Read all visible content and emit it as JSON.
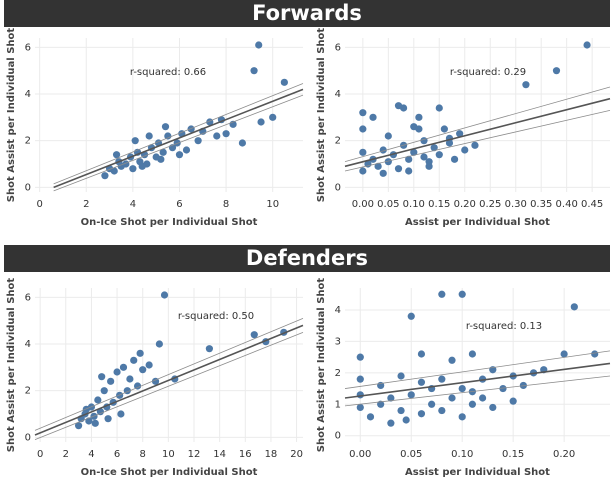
{
  "sections": [
    {
      "title": "Forwards"
    },
    {
      "title": "Defenders"
    }
  ],
  "chart_data": [
    {
      "type": "scatter",
      "x_label": "On-Ice Shot per Individual Shot",
      "y_label": "Shot Assist per Individual Shot",
      "annotation": "r-squared: 0.66",
      "color": "#4e79a7",
      "grid": true,
      "xlim": [
        -0.2,
        11.3
      ],
      "ylim": [
        -0.2,
        6.4
      ],
      "xticks": [
        0,
        2,
        4,
        6,
        8,
        10
      ],
      "yticks": [
        0,
        2,
        4,
        6
      ],
      "x": [
        2.8,
        3.0,
        3.2,
        3.4,
        3.5,
        3.7,
        3.9,
        4.0,
        4.2,
        4.3,
        4.5,
        4.6,
        4.8,
        5.0,
        5.1,
        5.3,
        5.5,
        5.7,
        5.9,
        6.1,
        6.3,
        6.5,
        6.8,
        7.0,
        7.3,
        7.6,
        8.0,
        8.3,
        4.1,
        4.7,
        5.4,
        6.0,
        3.3,
        4.4,
        5.2,
        9.2,
        9.4,
        10.0,
        10.5,
        9.5,
        8.7,
        7.8
      ],
      "values": [
        0.5,
        0.8,
        0.7,
        1.1,
        0.9,
        1.0,
        1.3,
        0.8,
        1.5,
        1.1,
        1.4,
        1.0,
        1.7,
        1.3,
        1.9,
        1.5,
        2.2,
        1.7,
        1.9,
        2.3,
        1.6,
        2.5,
        2.0,
        2.4,
        2.8,
        2.2,
        2.3,
        2.7,
        2.0,
        2.2,
        2.6,
        1.4,
        1.4,
        0.9,
        1.2,
        5.0,
        6.1,
        3.0,
        4.5,
        2.8,
        1.9,
        2.9
      ],
      "trend_x": [
        0.6,
        11.3
      ],
      "trend_y": [
        0.0,
        4.2
      ],
      "band_upper": [
        0.15,
        4.45
      ],
      "band_lower": [
        -0.15,
        3.95
      ]
    },
    {
      "type": "scatter",
      "x_label": "Assist per Individual Shot",
      "y_label": "Shot Assist per Individual Shot",
      "annotation": "r-squared: 0.29",
      "color": "#4e79a7",
      "grid": true,
      "xlim": [
        -0.035,
        0.485
      ],
      "ylim": [
        -0.2,
        6.4
      ],
      "xticks": [
        {
          "value": 0,
          "label": "0.00"
        },
        {
          "value": 0.05,
          "label": "0.05"
        },
        {
          "value": 0.1,
          "label": "0.10"
        },
        {
          "value": 0.15,
          "label": "0.15"
        },
        {
          "value": 0.2,
          "label": "0.20"
        },
        {
          "value": 0.25,
          "label": "0.25"
        },
        {
          "value": 0.3,
          "label": "0.30"
        },
        {
          "value": 0.35,
          "label": "0.35"
        },
        {
          "value": 0.4,
          "label": "0.40"
        },
        {
          "value": 0.45,
          "label": "0.45"
        }
      ],
      "yticks": [
        0,
        2,
        4,
        6
      ],
      "x": [
        0.0,
        0.0,
        0.0,
        0.01,
        0.02,
        0.02,
        0.03,
        0.04,
        0.05,
        0.05,
        0.06,
        0.07,
        0.08,
        0.08,
        0.09,
        0.1,
        0.1,
        0.11,
        0.12,
        0.12,
        0.13,
        0.14,
        0.15,
        0.16,
        0.17,
        0.18,
        0.19,
        0.2,
        0.07,
        0.11,
        0.15,
        0.0,
        0.13,
        0.22,
        0.32,
        0.38,
        0.44,
        0.04,
        0.09,
        0.17
      ],
      "values": [
        0.7,
        1.5,
        2.5,
        1.0,
        3.0,
        1.2,
        0.9,
        1.6,
        1.1,
        2.2,
        1.4,
        0.8,
        1.8,
        3.4,
        1.2,
        1.5,
        2.6,
        3.0,
        1.3,
        2.0,
        1.1,
        1.7,
        1.4,
        2.5,
        1.9,
        1.2,
        2.3,
        1.6,
        3.5,
        2.5,
        3.4,
        3.2,
        0.9,
        1.8,
        4.4,
        5.0,
        6.1,
        0.6,
        0.7,
        2.1
      ],
      "trend_x": [
        -0.035,
        0.485
      ],
      "trend_y": [
        0.9,
        3.8
      ],
      "band_upper": [
        1.1,
        4.3
      ],
      "band_lower": [
        0.7,
        3.3
      ]
    },
    {
      "type": "scatter",
      "x_label": "On-Ice Shot per Individual Shot",
      "y_label": "Shot Assist per Individual Shot",
      "annotation": "r-squared: 0.50",
      "color": "#4e79a7",
      "grid": true,
      "xlim": [
        -0.4,
        20.5
      ],
      "ylim": [
        -0.2,
        6.4
      ],
      "xticks": [
        0,
        2,
        4,
        6,
        8,
        10,
        12,
        14,
        16,
        18,
        20
      ],
      "yticks": [
        0,
        2,
        4,
        6
      ],
      "x": [
        3.0,
        3.2,
        3.5,
        3.8,
        4.0,
        4.2,
        4.5,
        4.7,
        5.0,
        5.2,
        5.5,
        5.7,
        6.0,
        6.2,
        6.5,
        6.8,
        7.0,
        7.3,
        7.6,
        8.0,
        8.5,
        9.0,
        4.3,
        5.3,
        6.3,
        3.6,
        4.8,
        9.7,
        9.3,
        13.2,
        16.7,
        17.6,
        19.0,
        7.8,
        10.5
      ],
      "values": [
        0.5,
        0.8,
        1.0,
        0.7,
        1.3,
        0.9,
        1.6,
        1.1,
        2.0,
        1.3,
        2.4,
        1.5,
        2.8,
        1.8,
        3.0,
        2.0,
        2.5,
        3.3,
        2.2,
        2.9,
        3.1,
        2.4,
        0.6,
        0.8,
        1.0,
        1.2,
        2.6,
        6.1,
        4.0,
        3.8,
        4.4,
        4.1,
        4.5,
        3.6,
        2.5
      ],
      "trend_x": [
        -0.4,
        20.5
      ],
      "trend_y": [
        0.1,
        4.8
      ],
      "band_upper": [
        0.3,
        5.1
      ],
      "band_lower": [
        -0.1,
        4.5
      ]
    },
    {
      "type": "scatter",
      "x_label": "Assist per Individual Shot",
      "y_label": "Shot Assist per Individual Shot",
      "annotation": "r-squared: 0.13",
      "color": "#4e79a7",
      "grid": true,
      "xlim": [
        -0.015,
        0.245
      ],
      "ylim": [
        -0.2,
        4.7
      ],
      "xticks": [
        {
          "value": 0,
          "label": "0.00"
        },
        {
          "value": 0.05,
          "label": "0.05"
        },
        {
          "value": 0.1,
          "label": "0.10"
        },
        {
          "value": 0.15,
          "label": "0.15"
        },
        {
          "value": 0.2,
          "label": "0.20"
        }
      ],
      "yticks": [
        0,
        1,
        2,
        3,
        4
      ],
      "x": [
        0.0,
        0.0,
        0.0,
        0.0,
        0.01,
        0.02,
        0.02,
        0.03,
        0.03,
        0.04,
        0.04,
        0.05,
        0.05,
        0.06,
        0.06,
        0.07,
        0.07,
        0.08,
        0.08,
        0.09,
        0.09,
        0.1,
        0.1,
        0.11,
        0.11,
        0.12,
        0.12,
        0.13,
        0.13,
        0.14,
        0.15,
        0.15,
        0.16,
        0.17,
        0.18,
        0.2,
        0.21,
        0.23,
        0.045,
        0.08,
        0.1,
        0.06,
        0.11
      ],
      "values": [
        2.5,
        1.8,
        1.3,
        0.9,
        0.6,
        1.0,
        1.6,
        0.4,
        1.2,
        0.8,
        1.9,
        3.8,
        1.3,
        0.7,
        2.6,
        1.5,
        1.0,
        4.5,
        1.8,
        1.2,
        2.4,
        4.5,
        1.5,
        1.0,
        2.6,
        1.8,
        1.2,
        0.9,
        2.1,
        1.5,
        1.9,
        1.1,
        1.6,
        2.0,
        2.1,
        2.6,
        4.1,
        2.6,
        0.5,
        0.8,
        0.6,
        1.7,
        1.4
      ],
      "trend_x": [
        -0.015,
        0.245
      ],
      "trend_y": [
        1.2,
        2.3
      ],
      "band_upper": [
        1.5,
        2.7
      ],
      "band_lower": [
        0.95,
        1.9
      ]
    }
  ]
}
